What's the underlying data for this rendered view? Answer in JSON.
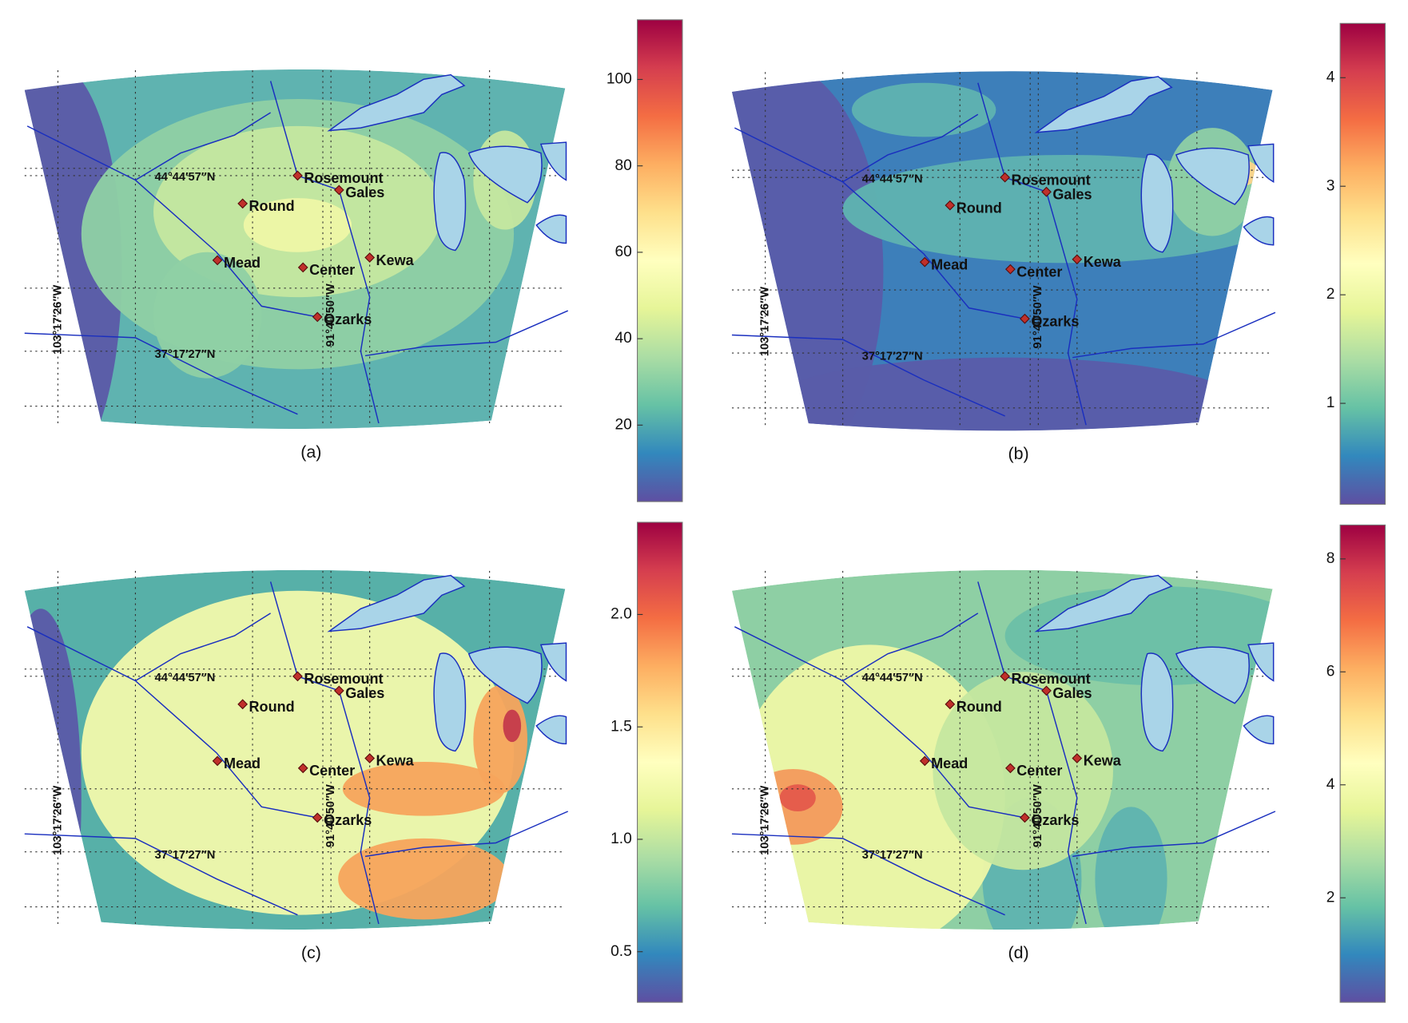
{
  "panels": [
    {
      "label": "(a)",
      "colorbar": {
        "ylim": [
          2.3,
          113.8
        ],
        "yticks": [
          20,
          40,
          60,
          80,
          100
        ]
      }
    },
    {
      "label": "(b)",
      "colorbar": {
        "ylim": [
          0.07,
          4.5
        ],
        "yticks": [
          1,
          2,
          3,
          4
        ]
      }
    },
    {
      "label": "(c)",
      "colorbar": {
        "ylim": [
          0.275,
          2.41
        ],
        "yticks": [
          0.5,
          {
            "value": 1,
            "label": "1.0"
          },
          1.5,
          {
            "value": 2,
            "label": "2.0"
          }
        ]
      }
    },
    {
      "label": "(d)",
      "colorbar": {
        "ylim": [
          0.15,
          8.6
        ],
        "yticks": [
          2,
          4,
          6,
          8
        ]
      }
    }
  ],
  "sites": [
    "Rosemount",
    "Gales",
    "Round",
    "Mead",
    "Center",
    "Kewa",
    "Ozarks"
  ],
  "latitude_labels": [
    "44°44′57″N",
    "37°17′27″N"
  ],
  "longitude_labels": [
    "103°17′26″W",
    "91°40′50″W"
  ]
}
